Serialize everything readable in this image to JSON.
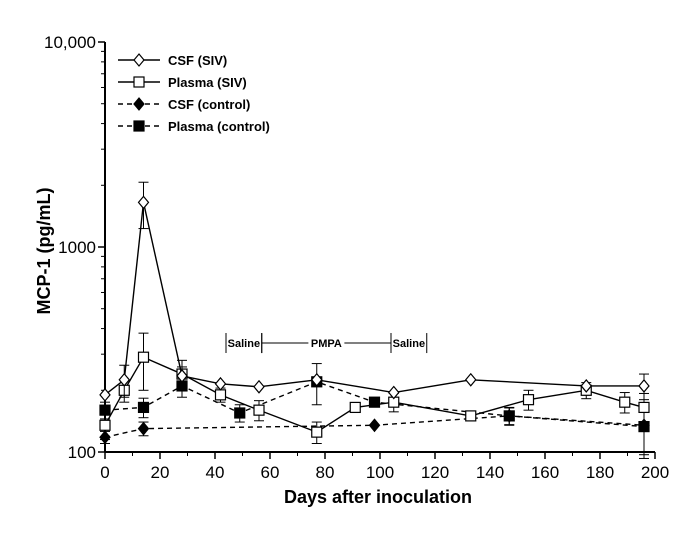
{
  "chart_data": {
    "type": "line",
    "xlabel": "Days after inoculation",
    "ylabel": "MCP-1 (pg/mL)",
    "xlim": [
      0,
      200
    ],
    "ylim": [
      100,
      10000
    ],
    "yscale": "log",
    "grid": false,
    "legend_position": "top-left",
    "x_ticks": [
      0,
      20,
      40,
      60,
      80,
      100,
      120,
      140,
      160,
      180,
      200
    ],
    "y_ticks": [
      100,
      1000,
      10000
    ],
    "y_tick_labels": [
      "100",
      "1000",
      "10,000"
    ],
    "series": [
      {
        "name": "CSF (SIV)",
        "marker": "diamond-open",
        "line": "solid",
        "x": [
          0,
          7,
          14,
          28,
          42,
          56,
          77,
          105,
          133,
          175,
          196
        ],
        "y": [
          190,
          225,
          1650,
          235,
          215,
          208,
          225,
          195,
          225,
          210,
          210
        ],
        "err": [
          0,
          40,
          420,
          25,
          0,
          0,
          0,
          0,
          0,
          0,
          30
        ]
      },
      {
        "name": "Plasma (SIV)",
        "marker": "square-open",
        "line": "solid",
        "x": [
          0,
          7,
          14,
          28,
          42,
          56,
          77,
          91,
          105,
          133,
          154,
          175,
          189,
          196
        ],
        "y": [
          135,
          200,
          290,
          240,
          190,
          160,
          125,
          165,
          175,
          150,
          180,
          200,
          175,
          165
        ],
        "err": [
          20,
          25,
          90,
          40,
          15,
          18,
          15,
          0,
          18,
          0,
          20,
          18,
          20,
          28
        ]
      },
      {
        "name": "CSF (control)",
        "marker": "diamond-filled",
        "line": "dashed",
        "x": [
          0,
          14,
          98,
          147,
          196
        ],
        "y": [
          118,
          130,
          135,
          150,
          135
        ],
        "err": [
          8,
          10,
          0,
          14,
          38
        ]
      },
      {
        "name": "Plasma (control)",
        "marker": "square-filled",
        "line": "dashed",
        "x": [
          0,
          14,
          28,
          49,
          77,
          98,
          147,
          196
        ],
        "y": [
          160,
          165,
          210,
          155,
          220,
          175,
          150,
          133
        ],
        "err": [
          15,
          18,
          25,
          15,
          50,
          0,
          15,
          40
        ]
      }
    ],
    "annotations": [
      {
        "text": "Saline",
        "x_start": 44,
        "x_end": 57
      },
      {
        "text": "PMPA",
        "x_start": 57,
        "x_end": 104
      },
      {
        "text": "Saline",
        "x_start": 104,
        "x_end": 117
      }
    ],
    "annotation_y": 340
  }
}
